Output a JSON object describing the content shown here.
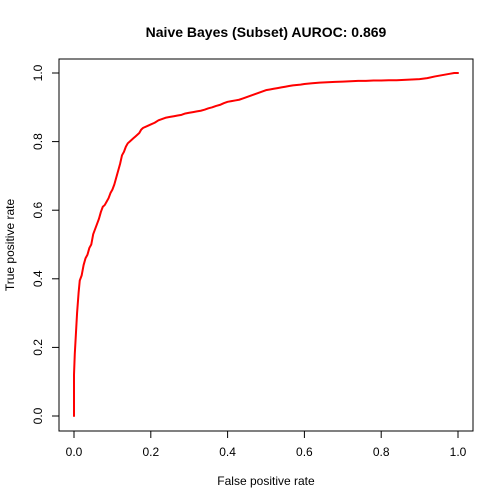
{
  "chart_data": {
    "type": "line",
    "title": "Naive Bayes (Subset) AUROC: 0.869",
    "xlabel": "False positive rate",
    "ylabel": "True positive rate",
    "xlim": [
      0,
      1
    ],
    "ylim": [
      0,
      1
    ],
    "xticks": [
      "0.0",
      "0.2",
      "0.4",
      "0.6",
      "0.8",
      "1.0"
    ],
    "yticks": [
      "0.0",
      "0.2",
      "0.4",
      "0.6",
      "0.8",
      "1.0"
    ],
    "grid": false,
    "series": [
      {
        "color": "#ff0000",
        "x": [
          0.0,
          0.0,
          0.002,
          0.005,
          0.008,
          0.012,
          0.015,
          0.02,
          0.025,
          0.03,
          0.035,
          0.04,
          0.045,
          0.05,
          0.055,
          0.06,
          0.065,
          0.07,
          0.075,
          0.08,
          0.085,
          0.09,
          0.095,
          0.1,
          0.105,
          0.11,
          0.115,
          0.12,
          0.125,
          0.13,
          0.135,
          0.14,
          0.145,
          0.15,
          0.155,
          0.16,
          0.165,
          0.17,
          0.175,
          0.18,
          0.19,
          0.2,
          0.21,
          0.22,
          0.23,
          0.24,
          0.25,
          0.26,
          0.27,
          0.28,
          0.29,
          0.3,
          0.31,
          0.32,
          0.33,
          0.34,
          0.35,
          0.36,
          0.37,
          0.38,
          0.39,
          0.4,
          0.41,
          0.42,
          0.43,
          0.44,
          0.45,
          0.46,
          0.47,
          0.48,
          0.49,
          0.5,
          0.51,
          0.52,
          0.53,
          0.54,
          0.55,
          0.56,
          0.57,
          0.58,
          0.59,
          0.6,
          0.62,
          0.64,
          0.66,
          0.68,
          0.7,
          0.72,
          0.74,
          0.76,
          0.78,
          0.8,
          0.82,
          0.84,
          0.86,
          0.88,
          0.9,
          0.92,
          0.94,
          0.96,
          0.98,
          0.99,
          1.0
        ],
        "y": [
          0.0,
          0.12,
          0.18,
          0.24,
          0.3,
          0.36,
          0.395,
          0.41,
          0.44,
          0.46,
          0.47,
          0.49,
          0.5,
          0.53,
          0.545,
          0.56,
          0.575,
          0.595,
          0.61,
          0.615,
          0.625,
          0.635,
          0.65,
          0.66,
          0.675,
          0.695,
          0.715,
          0.735,
          0.76,
          0.77,
          0.785,
          0.795,
          0.8,
          0.805,
          0.81,
          0.815,
          0.82,
          0.825,
          0.835,
          0.84,
          0.845,
          0.85,
          0.855,
          0.862,
          0.866,
          0.87,
          0.872,
          0.874,
          0.876,
          0.878,
          0.882,
          0.884,
          0.886,
          0.888,
          0.89,
          0.893,
          0.897,
          0.9,
          0.904,
          0.907,
          0.912,
          0.916,
          0.918,
          0.92,
          0.922,
          0.926,
          0.93,
          0.934,
          0.938,
          0.942,
          0.946,
          0.95,
          0.952,
          0.954,
          0.956,
          0.958,
          0.96,
          0.962,
          0.964,
          0.965,
          0.966,
          0.968,
          0.97,
          0.972,
          0.973,
          0.974,
          0.975,
          0.976,
          0.977,
          0.977,
          0.978,
          0.978,
          0.979,
          0.979,
          0.98,
          0.981,
          0.982,
          0.985,
          0.99,
          0.994,
          0.998,
          1.0,
          1.0
        ]
      }
    ]
  }
}
